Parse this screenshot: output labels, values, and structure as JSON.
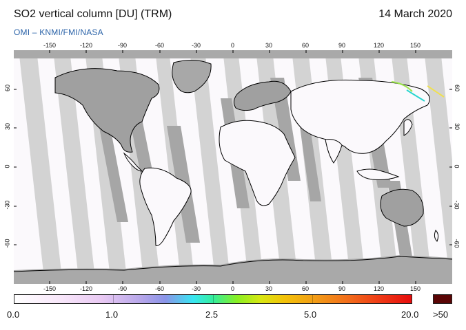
{
  "header": {
    "title": "SO2 vertical column [DU] (TRM)",
    "date": "14 March 2020",
    "credit": "OMI  –  KNMI/FMI/NASA"
  },
  "map": {
    "lon_ticks_top": [
      "-150",
      "-120",
      "-90",
      "-60",
      "-30",
      "0",
      "30",
      "60",
      "90",
      "120",
      "150"
    ],
    "lon_ticks_bottom": [
      "-150",
      "-120",
      "-90",
      "-60",
      "-30",
      "0",
      "30",
      "60",
      "90",
      "120",
      "150"
    ],
    "lat_ticks_left": [
      "60",
      "30",
      "0",
      "-30",
      "-60"
    ],
    "lat_ticks_right": [
      "60",
      "30",
      "0",
      "-30",
      "-60"
    ],
    "colors": {
      "ocean_land_observed": "#fbf9fc",
      "missing_data": "#a9a9a9",
      "orbit_gap_light": "#d0d0d0",
      "coastline": "#000000"
    }
  },
  "colorbar": {
    "labels": [
      "0.0",
      "1.0",
      "2.5",
      "5.0",
      "20.0"
    ],
    "over_label": ">50",
    "over_color": "#5a0505"
  }
}
